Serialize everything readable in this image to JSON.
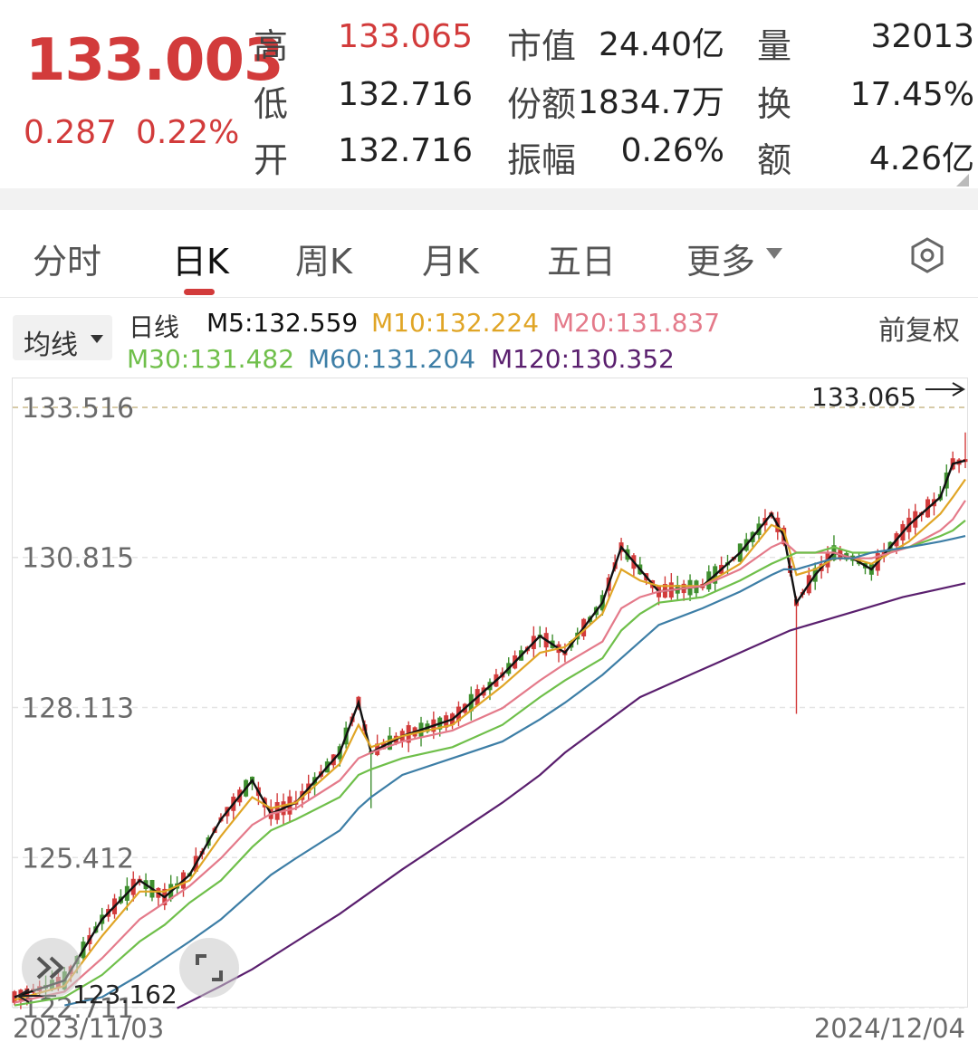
{
  "quote": {
    "price": "133.003",
    "change": "0.287",
    "change_pct": "0.22%",
    "color_up": "#d23b3b"
  },
  "stats": [
    {
      "label": "高",
      "value": "133.065",
      "color": "#d23b3b"
    },
    {
      "label": "低",
      "value": "132.716",
      "color": "#222222"
    },
    {
      "label": "开",
      "value": "132.716",
      "color": "#222222"
    },
    {
      "label": "市值",
      "value": "24.40亿",
      "color": "#222222"
    },
    {
      "label": "份额",
      "value": "1834.7万",
      "color": "#222222"
    },
    {
      "label": "振幅",
      "value": "0.26%",
      "color": "#222222"
    },
    {
      "label": "量",
      "value": "32013",
      "color": "#222222"
    },
    {
      "label": "换",
      "value": "17.45%",
      "color": "#222222"
    },
    {
      "label": "额",
      "value": "4.26亿",
      "color": "#222222"
    }
  ],
  "tabs": [
    {
      "label": "分时",
      "active": false
    },
    {
      "label": "日K",
      "active": true
    },
    {
      "label": "周K",
      "active": false
    },
    {
      "label": "月K",
      "active": false
    },
    {
      "label": "五日",
      "active": false
    },
    {
      "label": "更多",
      "active": false
    }
  ],
  "more_icon": "caret-down-icon",
  "settings_icon": "settings-icon",
  "ma_button": "均线",
  "ma_legend": {
    "title": "日线",
    "items": [
      {
        "label": "M5:132.559",
        "color": "#111111"
      },
      {
        "label": "M10:132.224",
        "color": "#e0a526"
      },
      {
        "label": "M20:131.837",
        "color": "#e47a8a"
      },
      {
        "label": "M30:131.482",
        "color": "#6fbf4a"
      },
      {
        "label": "M60:131.204",
        "color": "#3d7ea6"
      },
      {
        "label": "M120:130.352",
        "color": "#5a1f6e"
      }
    ]
  },
  "adjust_label": "前复权",
  "chart_data": {
    "type": "candlestick",
    "y_ticks": [
      "133.516",
      "130.815",
      "128.113",
      "125.412",
      "122.711"
    ],
    "ylim": [
      122.711,
      133.516
    ],
    "x_labels": [
      "2023/11/03",
      "2024/12/04"
    ],
    "max_marker": "133.065",
    "min_marker": "123.162",
    "ma_series": [
      {
        "name": "M5",
        "color": "#111111",
        "points": [
          [
            0,
            122.9
          ],
          [
            8,
            123.2
          ],
          [
            14,
            124.3
          ],
          [
            20,
            125.0
          ],
          [
            24,
            124.7
          ],
          [
            28,
            125.1
          ],
          [
            33,
            126.1
          ],
          [
            38,
            126.8
          ],
          [
            41,
            126.2
          ],
          [
            45,
            126.4
          ],
          [
            52,
            127.3
          ],
          [
            55,
            128.2
          ],
          [
            57,
            127.3
          ],
          [
            62,
            127.6
          ],
          [
            70,
            127.9
          ],
          [
            78,
            128.7
          ],
          [
            84,
            129.4
          ],
          [
            88,
            129.1
          ],
          [
            94,
            130.0
          ],
          [
            97,
            131.0
          ],
          [
            100,
            130.6
          ],
          [
            103,
            130.2
          ],
          [
            110,
            130.3
          ],
          [
            116,
            130.9
          ],
          [
            121,
            131.6
          ],
          [
            123,
            131.2
          ],
          [
            125,
            130.0
          ],
          [
            128,
            130.5
          ],
          [
            131,
            130.9
          ],
          [
            134,
            130.8
          ],
          [
            137,
            130.6
          ],
          [
            143,
            131.4
          ],
          [
            148,
            131.9
          ],
          [
            150,
            132.5
          ],
          [
            152,
            132.56
          ]
        ]
      },
      {
        "name": "M10",
        "color": "#e0a526",
        "points": [
          [
            0,
            122.85
          ],
          [
            8,
            123.1
          ],
          [
            14,
            124.0
          ],
          [
            20,
            124.8
          ],
          [
            24,
            124.8
          ],
          [
            28,
            125.0
          ],
          [
            33,
            125.8
          ],
          [
            38,
            126.5
          ],
          [
            41,
            126.3
          ],
          [
            45,
            126.4
          ],
          [
            52,
            127.1
          ],
          [
            55,
            127.8
          ],
          [
            57,
            127.4
          ],
          [
            62,
            127.6
          ],
          [
            70,
            127.8
          ],
          [
            78,
            128.5
          ],
          [
            84,
            129.1
          ],
          [
            88,
            129.2
          ],
          [
            94,
            129.8
          ],
          [
            97,
            130.6
          ],
          [
            100,
            130.4
          ],
          [
            103,
            130.3
          ],
          [
            110,
            130.3
          ],
          [
            116,
            130.7
          ],
          [
            121,
            131.4
          ],
          [
            123,
            131.3
          ],
          [
            125,
            130.5
          ],
          [
            128,
            130.6
          ],
          [
            131,
            130.8
          ],
          [
            134,
            130.8
          ],
          [
            137,
            130.7
          ],
          [
            143,
            131.1
          ],
          [
            148,
            131.6
          ],
          [
            150,
            131.9
          ],
          [
            152,
            132.22
          ]
        ]
      },
      {
        "name": "M20",
        "color": "#e47a8a",
        "points": [
          [
            0,
            122.8
          ],
          [
            8,
            123.0
          ],
          [
            14,
            123.6
          ],
          [
            20,
            124.3
          ],
          [
            24,
            124.6
          ],
          [
            28,
            124.9
          ],
          [
            33,
            125.4
          ],
          [
            38,
            126.0
          ],
          [
            41,
            126.2
          ],
          [
            45,
            126.3
          ],
          [
            52,
            126.8
          ],
          [
            55,
            127.2
          ],
          [
            57,
            127.3
          ],
          [
            62,
            127.5
          ],
          [
            70,
            127.7
          ],
          [
            78,
            128.1
          ],
          [
            84,
            128.6
          ],
          [
            88,
            128.9
          ],
          [
            94,
            129.3
          ],
          [
            97,
            129.9
          ],
          [
            100,
            130.1
          ],
          [
            103,
            130.2
          ],
          [
            110,
            130.3
          ],
          [
            116,
            130.6
          ],
          [
            121,
            131.0
          ],
          [
            123,
            131.1
          ],
          [
            125,
            130.9
          ],
          [
            128,
            130.9
          ],
          [
            131,
            130.9
          ],
          [
            134,
            130.8
          ],
          [
            137,
            130.8
          ],
          [
            143,
            131.0
          ],
          [
            148,
            131.3
          ],
          [
            150,
            131.5
          ],
          [
            152,
            131.84
          ]
        ]
      },
      {
        "name": "M30",
        "color": "#6fbf4a",
        "points": [
          [
            0,
            122.75
          ],
          [
            8,
            122.9
          ],
          [
            14,
            123.3
          ],
          [
            20,
            123.9
          ],
          [
            24,
            124.2
          ],
          [
            28,
            124.6
          ],
          [
            33,
            125.0
          ],
          [
            38,
            125.6
          ],
          [
            41,
            125.9
          ],
          [
            45,
            126.1
          ],
          [
            52,
            126.5
          ],
          [
            55,
            126.9
          ],
          [
            57,
            127.0
          ],
          [
            62,
            127.2
          ],
          [
            70,
            127.4
          ],
          [
            78,
            127.8
          ],
          [
            84,
            128.3
          ],
          [
            88,
            128.6
          ],
          [
            94,
            129.0
          ],
          [
            97,
            129.5
          ],
          [
            100,
            129.8
          ],
          [
            103,
            130.0
          ],
          [
            110,
            130.1
          ],
          [
            116,
            130.4
          ],
          [
            121,
            130.7
          ],
          [
            123,
            130.8
          ],
          [
            125,
            130.9
          ],
          [
            128,
            130.9
          ],
          [
            131,
            131.0
          ],
          [
            134,
            130.9
          ],
          [
            137,
            130.9
          ],
          [
            143,
            131.0
          ],
          [
            148,
            131.2
          ],
          [
            150,
            131.3
          ],
          [
            152,
            131.48
          ]
        ]
      },
      {
        "name": "M60",
        "color": "#3d7ea6",
        "points": [
          [
            8,
            122.75
          ],
          [
            14,
            122.9
          ],
          [
            20,
            123.3
          ],
          [
            24,
            123.6
          ],
          [
            28,
            123.9
          ],
          [
            33,
            124.3
          ],
          [
            38,
            124.8
          ],
          [
            41,
            125.1
          ],
          [
            45,
            125.4
          ],
          [
            52,
            125.9
          ],
          [
            55,
            126.3
          ],
          [
            57,
            126.5
          ],
          [
            62,
            126.9
          ],
          [
            70,
            127.2
          ],
          [
            78,
            127.5
          ],
          [
            84,
            127.9
          ],
          [
            88,
            128.2
          ],
          [
            94,
            128.7
          ],
          [
            97,
            129.0
          ],
          [
            100,
            129.3
          ],
          [
            103,
            129.6
          ],
          [
            110,
            129.9
          ],
          [
            116,
            130.2
          ],
          [
            121,
            130.5
          ],
          [
            123,
            130.6
          ],
          [
            125,
            130.6
          ],
          [
            128,
            130.7
          ],
          [
            131,
            130.8
          ],
          [
            134,
            130.8
          ],
          [
            137,
            130.9
          ],
          [
            143,
            131.0
          ],
          [
            148,
            131.1
          ],
          [
            150,
            131.15
          ],
          [
            152,
            131.2
          ]
        ]
      },
      {
        "name": "M120",
        "color": "#5a1f6e",
        "points": [
          [
            26,
            122.7
          ],
          [
            33,
            123.1
          ],
          [
            38,
            123.4
          ],
          [
            45,
            123.9
          ],
          [
            52,
            124.4
          ],
          [
            57,
            124.8
          ],
          [
            62,
            125.2
          ],
          [
            70,
            125.8
          ],
          [
            78,
            126.4
          ],
          [
            84,
            126.9
          ],
          [
            88,
            127.3
          ],
          [
            94,
            127.8
          ],
          [
            100,
            128.3
          ],
          [
            106,
            128.6
          ],
          [
            112,
            128.9
          ],
          [
            118,
            129.2
          ],
          [
            124,
            129.5
          ],
          [
            130,
            129.7
          ],
          [
            136,
            129.9
          ],
          [
            142,
            130.1
          ],
          [
            148,
            130.25
          ],
          [
            152,
            130.35
          ]
        ]
      }
    ]
  }
}
